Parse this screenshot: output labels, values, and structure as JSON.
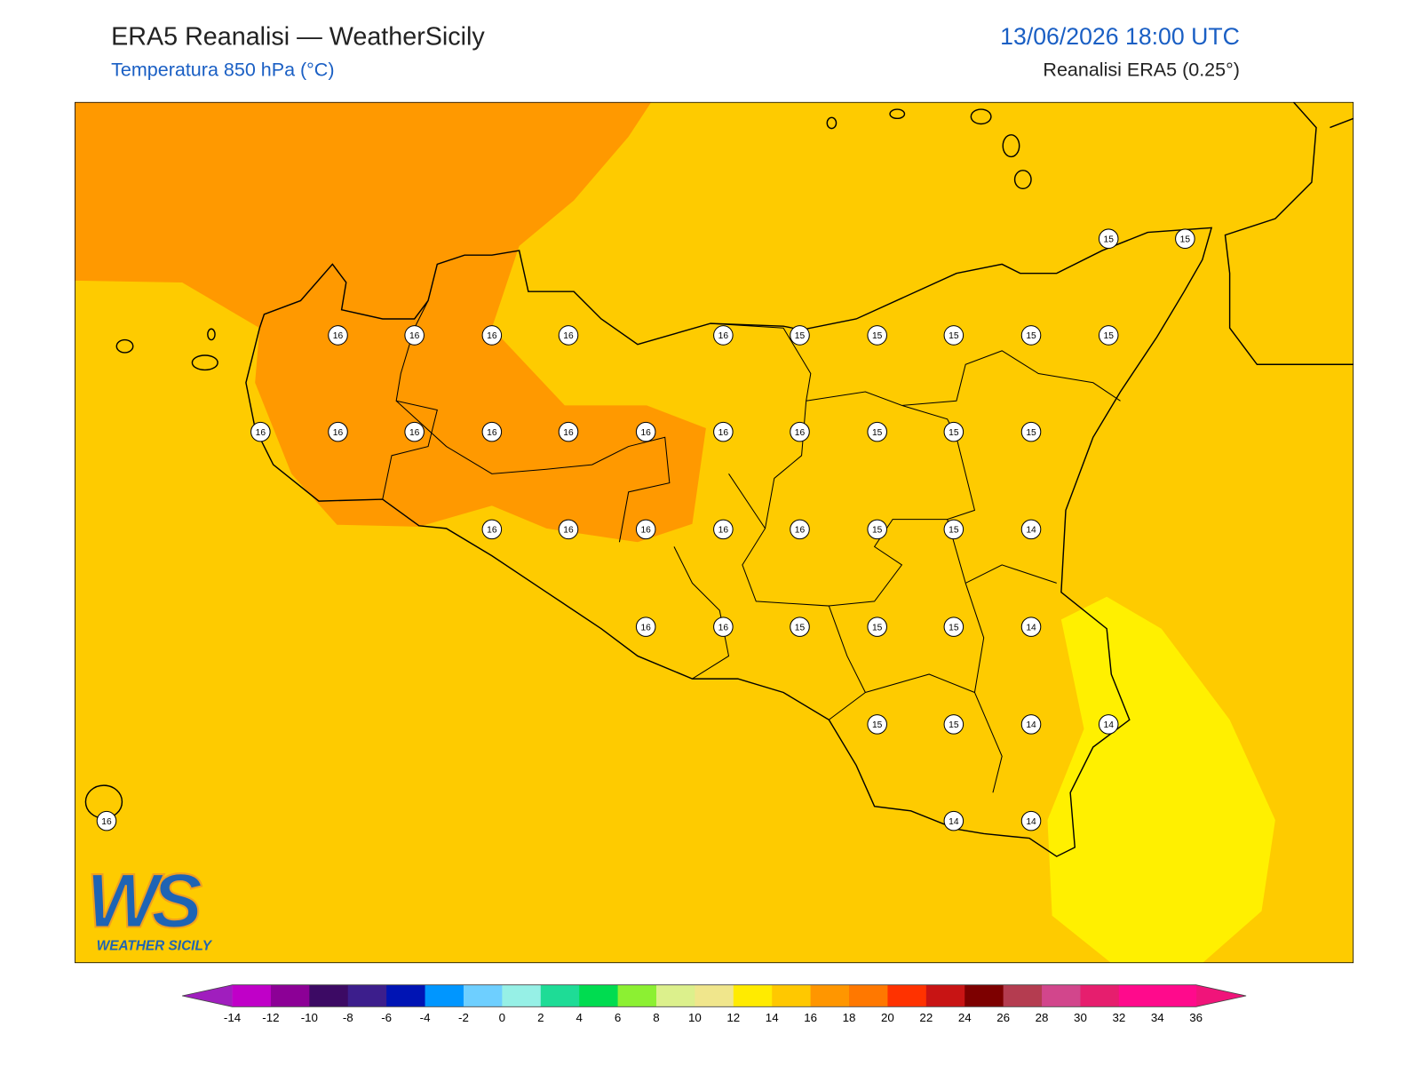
{
  "header": {
    "title": "ERA5 Reanalisi — WeatherSicily",
    "subtitle": "Temperatura 850 hPa (°C)",
    "date": "13/06/2026 18:00 UTC",
    "source": "Reanalisi ERA5 (0.25°)"
  },
  "map": {
    "station_values": [
      15,
      15,
      16,
      16,
      16,
      16,
      16,
      15,
      15,
      15,
      15,
      15,
      16,
      16,
      16,
      16,
      16,
      16,
      16,
      16,
      15,
      15,
      15,
      16,
      16,
      16,
      16,
      16,
      15,
      15,
      14,
      16,
      16,
      15,
      15,
      15,
      14,
      15,
      15,
      14,
      14,
      16,
      14,
      14
    ],
    "background_color": "#fecb00",
    "warm_color": "#ff9900",
    "cool_color": "#fff000"
  },
  "colorbar": {
    "ticks": [
      -14,
      -12,
      -10,
      -8,
      -6,
      -4,
      -2,
      0,
      2,
      4,
      6,
      8,
      10,
      12,
      14,
      16,
      18,
      20,
      22,
      24,
      26,
      28,
      30,
      32,
      34,
      36
    ],
    "under_color": "#a01ebe",
    "over_color": "#f0147a",
    "colors": [
      "#c000c8",
      "#8c0096",
      "#3c0a64",
      "#3c1e8c",
      "#0014b4",
      "#0096ff",
      "#6ecfff",
      "#96f0e6",
      "#1edc96",
      "#00dc50",
      "#8cf032",
      "#dcf08c",
      "#f0e68c",
      "#ffeb00",
      "#ffc800",
      "#ff9600",
      "#ff7800",
      "#ff3200",
      "#c81414",
      "#7d0000",
      "#b43c50",
      "#d2468c",
      "#e61e6e",
      "#ff0a8c",
      "#ff0a8c"
    ]
  },
  "logo": {
    "mark": "WS",
    "text": "WEATHER SICILY"
  }
}
